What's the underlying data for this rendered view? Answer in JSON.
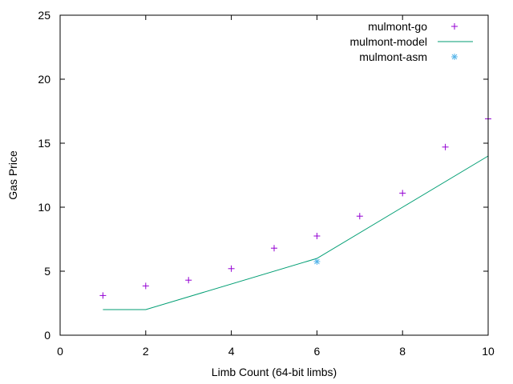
{
  "chart_data": {
    "type": "scatter",
    "title": "",
    "xlabel": "Limb Count (64-bit limbs)",
    "ylabel": "Gas Price",
    "xlim": [
      0,
      10
    ],
    "ylim": [
      0,
      25
    ],
    "xticks": [
      0,
      2,
      4,
      6,
      8,
      10
    ],
    "yticks": [
      0,
      5,
      10,
      15,
      20,
      25
    ],
    "grid": false,
    "legend_position": "top-right",
    "series": [
      {
        "name": "mulmont-go",
        "style": "points",
        "marker": "plus",
        "color": "#9400d3",
        "x": [
          1,
          2,
          3,
          4,
          5,
          6,
          7,
          8,
          9,
          10
        ],
        "y": [
          3.1,
          3.85,
          4.3,
          5.2,
          6.8,
          7.75,
          9.3,
          11.1,
          14.7,
          16.9
        ]
      },
      {
        "name": "mulmont-model",
        "style": "line",
        "color": "#009e73",
        "x": [
          1,
          2,
          6,
          8,
          10
        ],
        "y": [
          2,
          2,
          6,
          10,
          14
        ]
      },
      {
        "name": "mulmont-asm",
        "style": "points",
        "marker": "asterisk",
        "color": "#56b4e9",
        "x": [
          6
        ],
        "y": [
          5.75
        ]
      }
    ]
  }
}
